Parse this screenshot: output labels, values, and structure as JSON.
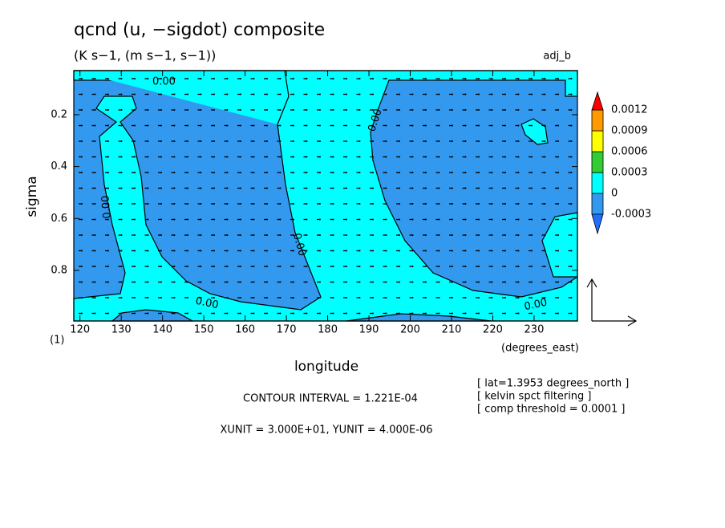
{
  "chart_data": {
    "type": "contour",
    "title": "qcnd (u, −sigdot) composite",
    "subtitle": "(K s−1, (m s−1, s−1))",
    "corner_label": "adj_b",
    "xlabel": "longitude",
    "xunits": "(degrees_east)",
    "ylabel": "sigma",
    "frame_label": "(1)",
    "xlim": [
      118.5,
      240.5
    ],
    "ylim": [
      0.03,
      0.995
    ],
    "y_inverted": true,
    "xticks": [
      120,
      130,
      140,
      150,
      160,
      170,
      180,
      190,
      200,
      210,
      220,
      230
    ],
    "yticks": [
      0.2,
      0.4,
      0.6,
      0.8
    ],
    "colorbar": {
      "levels": [
        -0.0003,
        0,
        0.0003,
        0.0006,
        0.0009,
        0.0012
      ],
      "colors": [
        "#1f6fff",
        "#3399ee",
        "#00ffff",
        "#33cc33",
        "#ffff00",
        "#ff9900",
        "#ff0000"
      ]
    },
    "contour_labels": [
      "0.00",
      "0.00",
      "0.00",
      "0.00",
      "0.00",
      "0.00"
    ],
    "footer": [
      "CONTOUR INTERVAL = 1.221E-04",
      "XUNIT = 3.000E+01, YUNIT = 4.000E-06"
    ],
    "notes": [
      "[ lat=1.3953 degrees_north ]",
      "[ kelvin spct filtering ]",
      "[ comp threshold = 0.0001 ]"
    ]
  }
}
